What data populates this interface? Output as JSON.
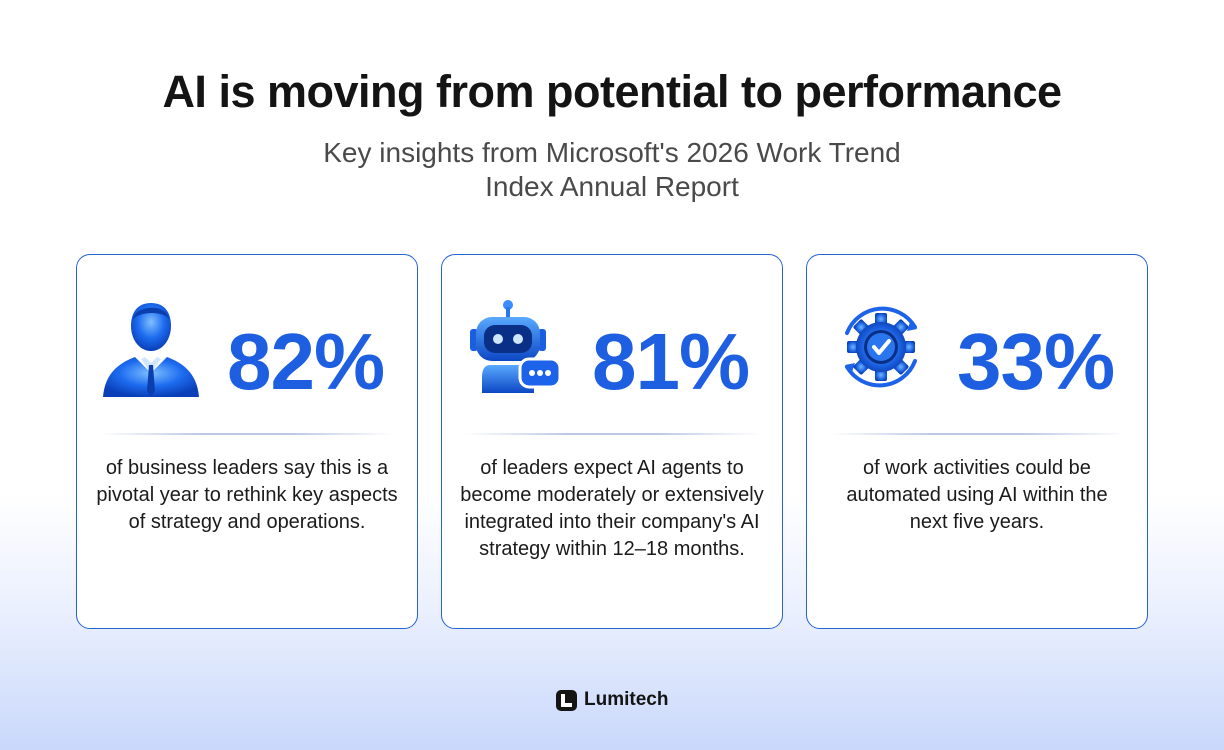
{
  "header": {
    "title": "AI is moving from potential to performance",
    "subtitle": "Key insights from Microsoft's 2026 Work Trend Index Annual Report"
  },
  "cards": [
    {
      "icon": "businessman-icon",
      "stat": "82%",
      "description": "of business leaders say this is a pivotal year to rethink key aspects of strategy and operations."
    },
    {
      "icon": "robot-chat-icon",
      "stat": "81%",
      "description": "of leaders expect AI agents to become moderately or extensively integrated into their company's AI strategy within 12–18 months."
    },
    {
      "icon": "gear-check-icon",
      "stat": "33%",
      "description": "of work activities could be automated using AI within the next five years."
    }
  ],
  "footer": {
    "brand": "Lumitech"
  },
  "colors": {
    "accent": "#1d5fe0",
    "border": "#2563d6",
    "text": "#141414"
  }
}
